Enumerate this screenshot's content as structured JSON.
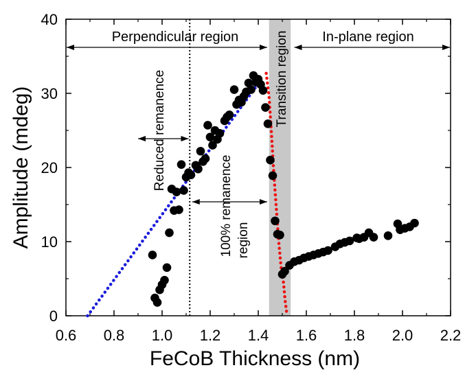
{
  "chart_data": {
    "type": "scatter",
    "xlabel": "FeCoB Thickness (nm)",
    "ylabel": "Amplitude (mdeg)",
    "xlim": [
      0.6,
      2.2
    ],
    "ylim": [
      0,
      40
    ],
    "xticks": [
      "0.6",
      "0.8",
      "1.0",
      "1.2",
      "1.4",
      "1.6",
      "1.8",
      "2.0",
      "2.2"
    ],
    "yticks": [
      "0",
      "10",
      "20",
      "30",
      "40"
    ],
    "grid": false,
    "series": [
      {
        "marker": "circle",
        "color": "#000000",
        "x": [
          0.96,
          0.97,
          0.98,
          0.99,
          1.0,
          1.01,
          1.02,
          1.03,
          1.04,
          1.05,
          1.06,
          1.07,
          1.08,
          1.09,
          1.1,
          1.11,
          1.12,
          1.14,
          1.15,
          1.16,
          1.17,
          1.18,
          1.19,
          1.2,
          1.21,
          1.22,
          1.23,
          1.24,
          1.26,
          1.27,
          1.28,
          1.3,
          1.31,
          1.32,
          1.33,
          1.34,
          1.35,
          1.36,
          1.37,
          1.38,
          1.39,
          1.4,
          1.41,
          1.42,
          1.43,
          1.44,
          1.45,
          1.46,
          1.47,
          1.48,
          1.49,
          1.5,
          1.51,
          1.53,
          1.55,
          1.57,
          1.59,
          1.61,
          1.63,
          1.65,
          1.67,
          1.69,
          1.72,
          1.74,
          1.76,
          1.78,
          1.81,
          1.82,
          1.84,
          1.86,
          1.88,
          1.94,
          1.98,
          1.99,
          2.01,
          2.03,
          2.05
        ],
        "y": [
          8.2,
          2.4,
          1.8,
          3.5,
          4.2,
          4.8,
          6.5,
          11.2,
          17.1,
          14.2,
          16.7,
          14.3,
          20.4,
          16.9,
          18.7,
          19.3,
          19.0,
          20.3,
          19.8,
          22.2,
          20.8,
          21.2,
          25.7,
          24.1,
          23.0,
          25.0,
          23.8,
          24.6,
          26.3,
          26.8,
          27.1,
          30.5,
          28.5,
          29.1,
          28.8,
          29.6,
          30.2,
          31.4,
          30.5,
          32.4,
          31.5,
          31.9,
          31.2,
          30.4,
          28.1,
          25.9,
          21.0,
          18.9,
          12.8,
          11.0,
          10.9,
          5.6,
          6.0,
          6.8,
          7.3,
          7.5,
          7.8,
          8.0,
          8.2,
          8.4,
          8.6,
          8.8,
          9.3,
          9.7,
          9.9,
          10.1,
          10.5,
          10.4,
          10.6,
          11.2,
          10.6,
          10.8,
          12.4,
          11.6,
          11.8,
          12.0,
          12.5
        ]
      },
      {
        "style": "dotted-line",
        "color": "#1a1adc",
        "x": [
          0.69,
          1.4
        ],
        "y": [
          0,
          31.3
        ]
      },
      {
        "style": "dotted-line",
        "color": "#ee1111",
        "x": [
          1.433,
          1.445,
          1.455,
          1.465,
          1.475,
          1.485,
          1.495,
          1.505,
          1.512,
          1.52
        ],
        "y": [
          32.7,
          29.5,
          24.5,
          19.0,
          14.5,
          10.0,
          6.5,
          4.5,
          2.0,
          0
        ]
      }
    ],
    "vline_dotted_x": 1.115,
    "shaded_band": [
      1.445,
      1.535
    ],
    "annotations": {
      "perpendicular": "Perpendicular region",
      "in_plane": "In-plane region",
      "transition": "Transition region",
      "reduced": "Reduced remanence",
      "hundred_line1": "100% remanence",
      "hundred_line2": "region"
    }
  }
}
